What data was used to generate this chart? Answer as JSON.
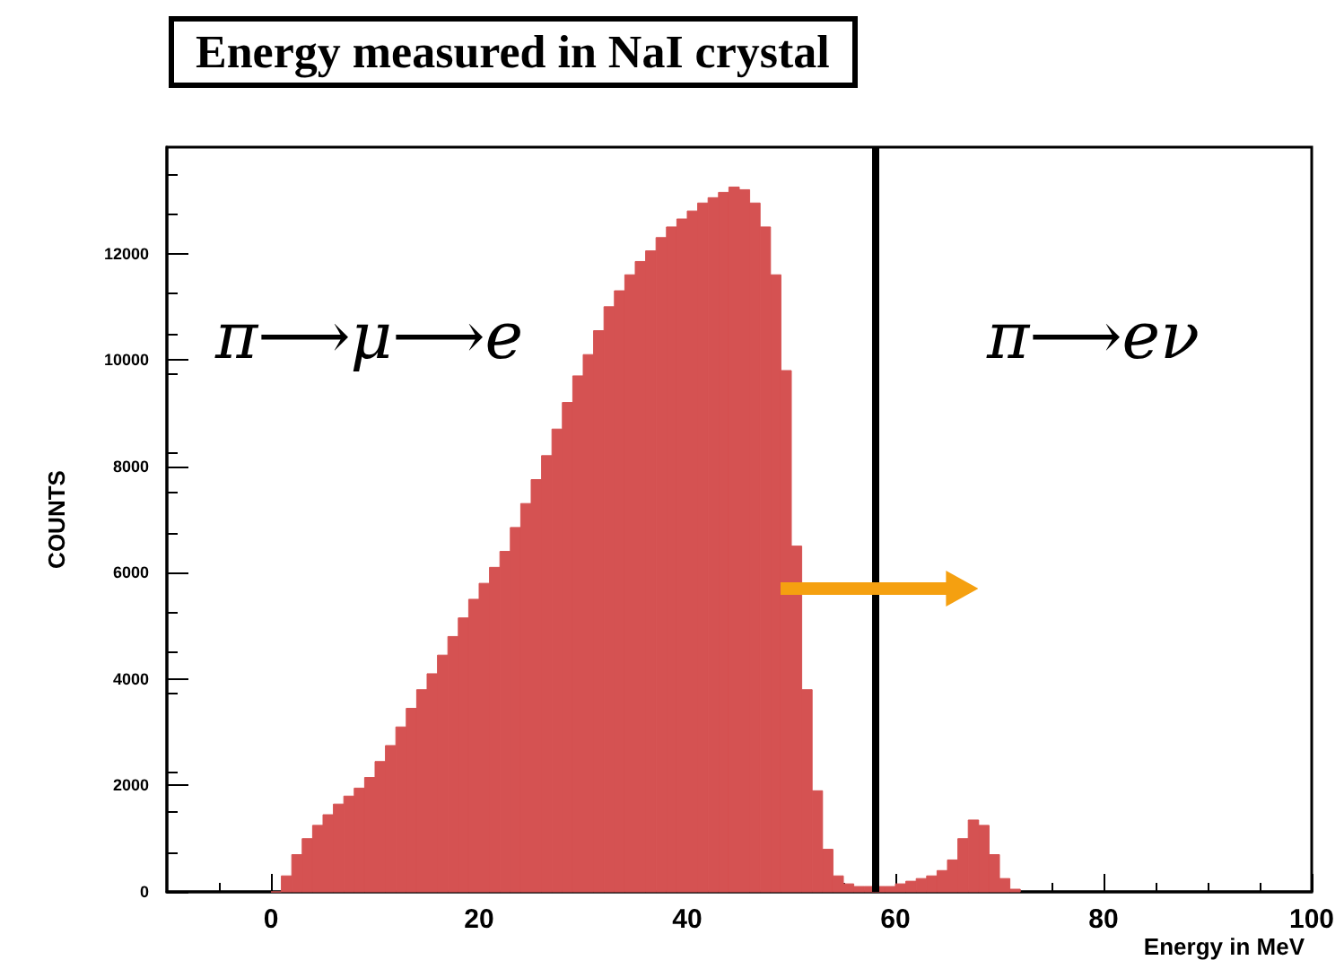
{
  "chart_data": {
    "type": "histogram",
    "title": "Energy measured in NaI crystal",
    "xlabel": "Energy in MeV",
    "ylabel": "COUNTS",
    "bins": [
      0,
      1,
      2,
      3,
      4,
      5,
      6,
      7,
      8,
      9,
      10,
      11,
      12,
      13,
      14,
      15,
      16,
      17,
      18,
      19,
      20,
      21,
      22,
      23,
      24,
      25,
      26,
      27,
      28,
      29,
      30,
      31,
      32,
      33,
      34,
      35,
      36,
      37,
      38,
      39,
      40,
      41,
      42,
      43,
      44,
      45,
      46,
      47,
      48,
      49,
      50,
      51,
      52,
      53,
      54,
      55,
      56,
      57,
      58,
      59,
      60,
      61,
      62,
      63,
      64,
      65,
      66,
      67,
      68,
      69,
      70,
      71,
      72
    ],
    "values": [
      0,
      300,
      700,
      1000,
      1250,
      1450,
      1650,
      1800,
      1950,
      2150,
      2450,
      2750,
      3100,
      3450,
      3800,
      4100,
      4450,
      4800,
      5150,
      5500,
      5800,
      6100,
      6400,
      6850,
      7300,
      7750,
      8200,
      8700,
      9200,
      9700,
      10100,
      10550,
      11000,
      11300,
      11600,
      11850,
      12050,
      12300,
      12500,
      12650,
      12800,
      12950,
      13050,
      13150,
      13250,
      13200,
      12950,
      12500,
      11600,
      9800,
      6500,
      3800,
      1900,
      800,
      300,
      150,
      100,
      100,
      100,
      100,
      150,
      200,
      250,
      300,
      400,
      600,
      1000,
      1350,
      1250,
      700,
      250,
      50
    ],
    "color": "#d55252",
    "xlim": [
      -10,
      100
    ],
    "xticks": [
      0,
      20,
      40,
      60,
      80,
      100
    ],
    "ylim": [
      0,
      14000
    ],
    "yticks": [
      0,
      2000,
      4000,
      6000,
      8000,
      10000,
      12000
    ],
    "grid": false,
    "ref_lines": [
      {
        "axis": "x",
        "value": 58,
        "color": "#000000"
      }
    ],
    "annotations": [
      "π⟶μ⟶e",
      "π⟶eν"
    ]
  }
}
